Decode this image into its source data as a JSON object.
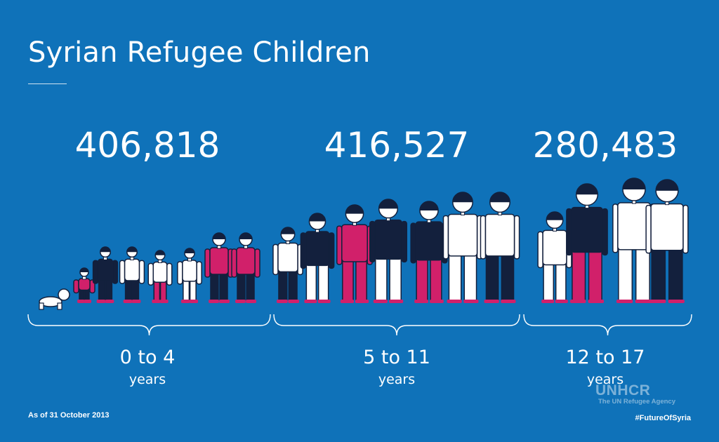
{
  "title": "Syrian Refugee Children",
  "chart_data": {
    "type": "bar",
    "categories": [
      "0 to 4",
      "5 to 11",
      "12 to 17"
    ],
    "category_unit": "years",
    "values": [
      406818,
      416527,
      280483
    ],
    "value_labels": [
      "406,818",
      "416,527",
      "280,483"
    ]
  },
  "footnote": "As of 31 October 2013",
  "hashtag": "#FutureOfSyria",
  "logo": {
    "name": "UNHCR",
    "tagline": "The UN Refugee Agency"
  },
  "colors": {
    "background": "#0f72b9",
    "accent": "#d1206a",
    "figure_dark": "#13203d",
    "figure_light": "#ffffff"
  }
}
